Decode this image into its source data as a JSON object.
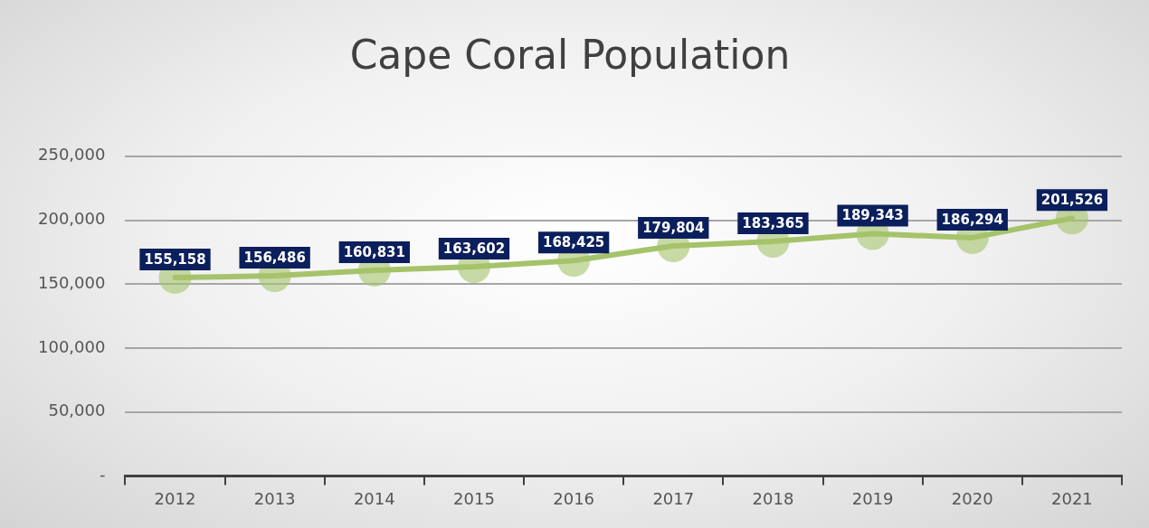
{
  "chart_data": {
    "type": "line",
    "title": "Cape Coral Population",
    "categories": [
      "2012",
      "2013",
      "2014",
      "2015",
      "2016",
      "2017",
      "2018",
      "2019",
      "2020",
      "2021"
    ],
    "series": [
      {
        "color": "#a5c36a",
        "values": [
          155158,
          156486,
          160831,
          163602,
          168425,
          179804,
          183365,
          189343,
          186294,
          201526
        ],
        "value_labels": [
          "155,158",
          "156,486",
          "160,831",
          "163,602",
          "168,425",
          "179,804",
          "183,365",
          "189,343",
          "186,294",
          "201,526"
        ]
      }
    ],
    "ylim": [
      0,
      250000
    ],
    "yticks": [
      {
        "value": 0,
        "label": "-"
      },
      {
        "value": 50000,
        "label": "50,000"
      },
      {
        "value": 100000,
        "label": "100,000"
      },
      {
        "value": 150000,
        "label": "150,000"
      },
      {
        "value": 200000,
        "label": "200,000"
      },
      {
        "value": 250000,
        "label": "250,000"
      }
    ],
    "grid": "y",
    "legend": false,
    "marker": "circle",
    "line_style": "solid"
  }
}
